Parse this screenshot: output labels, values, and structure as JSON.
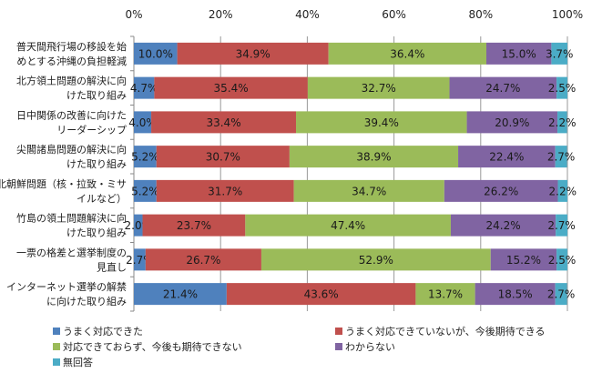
{
  "chart_data": {
    "type": "bar",
    "orientation": "horizontal",
    "stacked": true,
    "categories": [
      [
        "普天間飛行場の移設を始",
        "めとする沖縄の負担軽減"
      ],
      [
        "北方領土問題の解決に向",
        "けた取り組み"
      ],
      [
        "日中関係の改善に向けた",
        "リーダーシップ"
      ],
      [
        "尖閣諸島問題の解決に向",
        "けた取り組み"
      ],
      [
        "北朝鮮問題（核・拉致・ミサ",
        "イルなど）"
      ],
      [
        "竹島の領土問題解決に向",
        "けた取り組み"
      ],
      [
        "一票の格差と選挙制度の",
        "見直し"
      ],
      [
        "インターネット選挙の解禁",
        "に向けた取り組み"
      ]
    ],
    "series": [
      {
        "name": "うまく対応できた",
        "color": "#4F81BD",
        "values": [
          10.0,
          4.7,
          4.0,
          5.2,
          5.2,
          2.0,
          2.7,
          21.4
        ]
      },
      {
        "name": "うまく対応できていないが、今後期待できる",
        "color": "#C0504D",
        "values": [
          34.9,
          35.4,
          33.4,
          30.7,
          31.7,
          23.7,
          26.7,
          43.6
        ]
      },
      {
        "name": "対応できておらず、今後も期待できない",
        "color": "#9BBB59",
        "values": [
          36.4,
          32.7,
          39.4,
          38.9,
          34.7,
          47.4,
          52.9,
          13.7
        ]
      },
      {
        "name": "わからない",
        "color": "#8064A2",
        "values": [
          15.0,
          24.7,
          20.9,
          22.4,
          26.2,
          24.2,
          15.2,
          18.5
        ]
      },
      {
        "name": "無回答",
        "color": "#4BACC6",
        "values": [
          3.7,
          2.5,
          2.2,
          2.7,
          2.2,
          2.7,
          2.5,
          2.7
        ]
      }
    ],
    "x_ticks": [
      "0%",
      "20%",
      "40%",
      "60%",
      "80%",
      "100%"
    ],
    "xlim": [
      0,
      100
    ],
    "grid": true,
    "legend_position": "bottom"
  }
}
